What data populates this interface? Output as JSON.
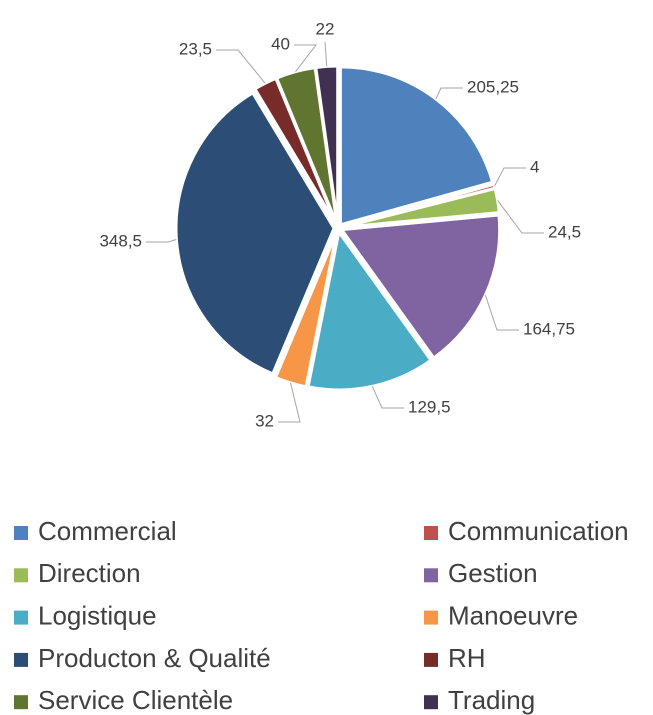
{
  "chart_data": {
    "type": "pie",
    "categories": [
      "Commercial",
      "Communication",
      "Direction",
      "Gestion",
      "Logistique",
      "Manoeuvre",
      "Producton & Qualité",
      "RH",
      "Service Clientèle",
      "Trading"
    ],
    "values": [
      205.25,
      4,
      24.5,
      164.75,
      129.5,
      32,
      348.5,
      23.5,
      40,
      22
    ],
    "value_labels": [
      "205,25",
      "4",
      "24,5",
      "164,75",
      "129,5",
      "32",
      "348,5",
      "23,5",
      "40",
      "22"
    ],
    "colors": [
      "#4f81bd",
      "#c0504d",
      "#9bbb59",
      "#8064a2",
      "#4bacc6",
      "#f79646",
      "#2c4d75",
      "#772c2a",
      "#5f7530",
      "#403152"
    ],
    "legend": "bottom"
  }
}
